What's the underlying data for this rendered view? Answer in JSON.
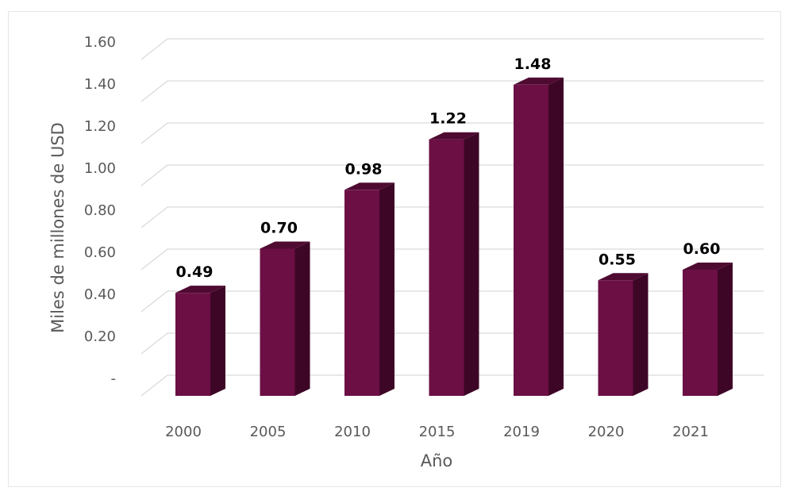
{
  "chart_data": {
    "type": "bar",
    "categories": [
      "2000",
      "2005",
      "2010",
      "2015",
      "2019",
      "2020",
      "2021"
    ],
    "values": [
      0.49,
      0.7,
      0.98,
      1.22,
      1.48,
      0.55,
      0.6
    ],
    "data_labels": [
      "0.49",
      "0.70",
      "0.98",
      "1.22",
      "1.48",
      "0.55",
      "0.60"
    ],
    "title": "",
    "xlabel": "Año",
    "ylabel": "Miles de millones de USD",
    "ylim": [
      0,
      1.6
    ],
    "yticks": [
      0,
      0.2,
      0.4,
      0.6,
      0.8,
      1.0,
      1.2,
      1.4,
      1.6
    ],
    "ytick_labels": [
      "-",
      "0.20",
      "0.40",
      "0.60",
      "0.80",
      "1.00",
      "1.20",
      "1.40",
      "1.60"
    ],
    "grid": true,
    "legend": "none",
    "style": "3d-column",
    "colors": {
      "bar_front": "#6b0f44",
      "bar_side": "#3e0626",
      "bar_top": "#4f0a32",
      "grid": "#d9d9d9"
    }
  }
}
